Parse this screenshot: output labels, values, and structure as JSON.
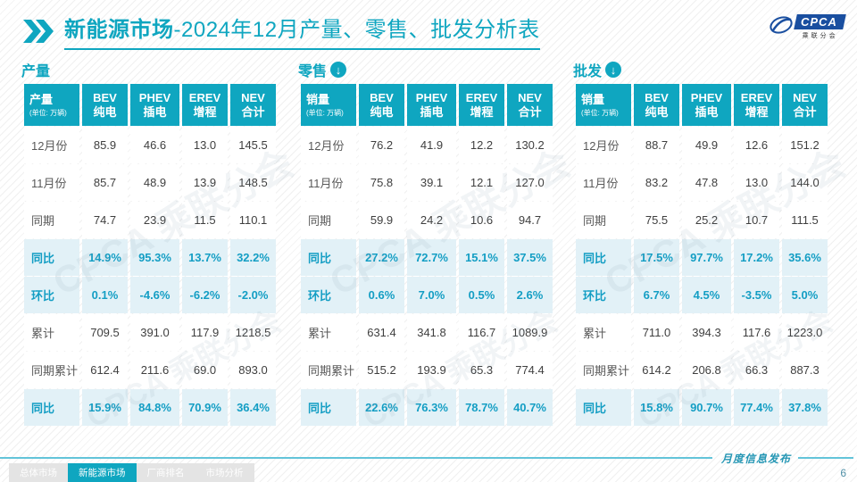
{
  "slide": {
    "title": {
      "bold": "新能源市场",
      "rest": "-2024年12月产量、零售、批发分析表"
    },
    "logo": {
      "name": "CPCA",
      "subtitle": "乘联分会"
    },
    "footer_label": "月度信息发布",
    "page_number": "6",
    "watermark": "CPCA 乘联分会",
    "nav_tabs": [
      {
        "label": "总体市场",
        "active": false
      },
      {
        "label": "新能源市场",
        "active": true
      },
      {
        "label": "厂商排名",
        "active": false
      },
      {
        "label": "市场分析",
        "active": false
      }
    ]
  },
  "icons": {
    "down_arrow": "↓"
  },
  "columns": [
    {
      "en": "BEV",
      "cn": "纯电"
    },
    {
      "en": "PHEV",
      "cn": "插电"
    },
    {
      "en": "EREV",
      "cn": "增程"
    },
    {
      "en": "NEV",
      "cn": "合计"
    }
  ],
  "row_labels": [
    "12月份",
    "11月份",
    "同期",
    "同比",
    "环比",
    "累计",
    "同期累计",
    "同比"
  ],
  "highlight_rows": [
    3,
    4,
    7
  ],
  "tables": [
    {
      "section": "产量",
      "corner": "产量",
      "unit": "(单位: 万辆)",
      "arrow": false,
      "rows": [
        [
          "85.9",
          "46.6",
          "13.0",
          "145.5"
        ],
        [
          "85.7",
          "48.9",
          "13.9",
          "148.5"
        ],
        [
          "74.7",
          "23.9",
          "11.5",
          "110.1"
        ],
        [
          "14.9%",
          "95.3%",
          "13.7%",
          "32.2%"
        ],
        [
          "0.1%",
          "-4.6%",
          "-6.2%",
          "-2.0%"
        ],
        [
          "709.5",
          "391.0",
          "117.9",
          "1218.5"
        ],
        [
          "612.4",
          "211.6",
          "69.0",
          "893.0"
        ],
        [
          "15.9%",
          "84.8%",
          "70.9%",
          "36.4%"
        ]
      ]
    },
    {
      "section": "零售",
      "corner": "销量",
      "unit": "(单位: 万辆)",
      "arrow": true,
      "rows": [
        [
          "76.2",
          "41.9",
          "12.2",
          "130.2"
        ],
        [
          "75.8",
          "39.1",
          "12.1",
          "127.0"
        ],
        [
          "59.9",
          "24.2",
          "10.6",
          "94.7"
        ],
        [
          "27.2%",
          "72.7%",
          "15.1%",
          "37.5%"
        ],
        [
          "0.6%",
          "7.0%",
          "0.5%",
          "2.6%"
        ],
        [
          "631.4",
          "341.8",
          "116.7",
          "1089.9"
        ],
        [
          "515.2",
          "193.9",
          "65.3",
          "774.4"
        ],
        [
          "22.6%",
          "76.3%",
          "78.7%",
          "40.7%"
        ]
      ]
    },
    {
      "section": "批发",
      "corner": "销量",
      "unit": "(单位: 万辆)",
      "arrow": true,
      "rows": [
        [
          "88.7",
          "49.9",
          "12.6",
          "151.2"
        ],
        [
          "83.2",
          "47.8",
          "13.0",
          "144.0"
        ],
        [
          "75.5",
          "25.2",
          "10.7",
          "111.5"
        ],
        [
          "17.5%",
          "97.7%",
          "17.2%",
          "35.6%"
        ],
        [
          "6.7%",
          "4.5%",
          "-3.5%",
          "5.0%"
        ],
        [
          "711.0",
          "394.3",
          "117.6",
          "1223.0"
        ],
        [
          "614.2",
          "206.8",
          "66.3",
          "887.3"
        ],
        [
          "15.8%",
          "90.7%",
          "77.4%",
          "37.8%"
        ]
      ]
    }
  ],
  "colors": {
    "teal": "#0FA6C0",
    "highlight_bg": "#e2f1f7",
    "highlight_text": "#149EC4"
  }
}
